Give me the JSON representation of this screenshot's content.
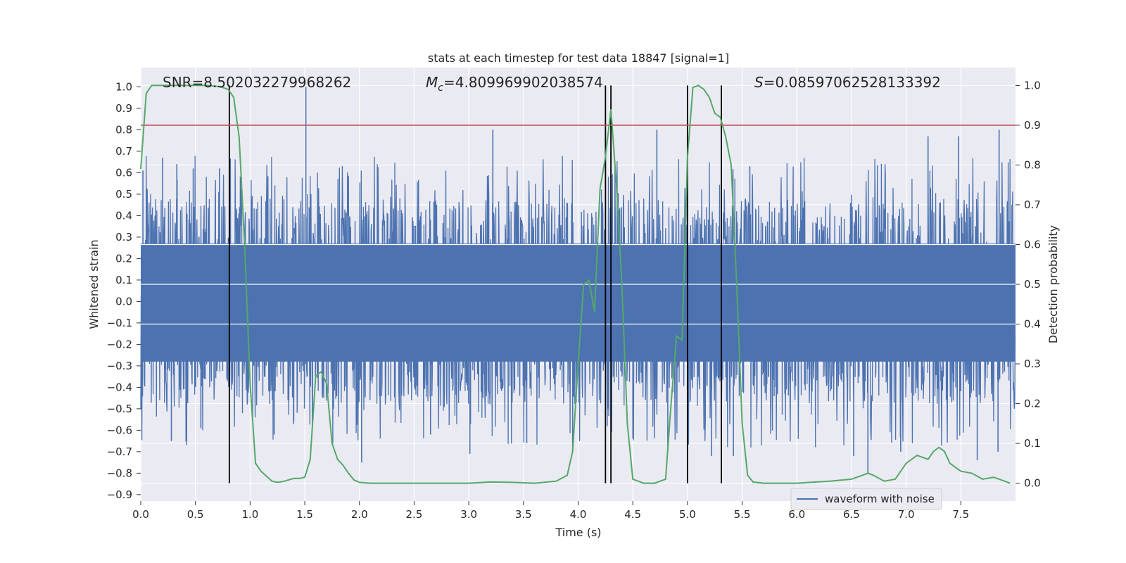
{
  "chart_data": {
    "type": "line",
    "title": "stats at each timestep for test data 18847 [signal=1]",
    "xlabel": "Time (s)",
    "ylabel": "Whitened strain",
    "y2label": "Detection probability",
    "xlim": [
      0.0,
      8.0
    ],
    "ylim": [
      -0.93,
      1.09
    ],
    "y2lim": [
      -0.045,
      1.045
    ],
    "xticks": [
      "0.0",
      "0.5",
      "1.0",
      "1.5",
      "2.0",
      "2.5",
      "3.0",
      "3.5",
      "4.0",
      "4.5",
      "5.0",
      "5.5",
      "6.0",
      "6.5",
      "7.0",
      "7.5"
    ],
    "yticks": [
      "1.0",
      "0.9",
      "0.8",
      "0.7",
      "0.6",
      "0.5",
      "0.4",
      "0.3",
      "0.2",
      "0.1",
      "0.0",
      "−0.1",
      "−0.2",
      "−0.3",
      "−0.4",
      "−0.5",
      "−0.6",
      "−0.7",
      "−0.8",
      "−0.9"
    ],
    "y2ticks": [
      "1.0",
      "0.9",
      "0.8",
      "0.7",
      "0.6",
      "0.5",
      "0.4",
      "0.3",
      "0.2",
      "0.1",
      "0.0"
    ],
    "grid": true,
    "legend": {
      "position": "bottom-right",
      "entries": [
        "waveform with noise"
      ]
    },
    "annotations": {
      "snr": "SNR=8.502032279968262",
      "mc_symbol": "M",
      "mc_subscript": "c",
      "mc_value": "=4.809969902038574",
      "s_symbol": "S",
      "s_value": "=0.08597062528133392"
    },
    "threshold": {
      "y2": 0.9,
      "color": "#c44e52"
    },
    "vlines_x": [
      0.81,
      4.25,
      4.3,
      5.0,
      5.31
    ],
    "colors": {
      "waveform": "#4c72b0",
      "probability": "#55a868",
      "vline": "#000000",
      "background": "#eaeaf2"
    },
    "waveform": {
      "name": "waveform with noise",
      "description_band": [
        -0.28,
        0.27
      ],
      "spikes": [
        {
          "x": 0.02,
          "y": 0.61
        },
        {
          "x": 0.2,
          "y": 0.67
        },
        {
          "x": 0.28,
          "y": -0.65
        },
        {
          "x": 0.33,
          "y": 0.64
        },
        {
          "x": 0.48,
          "y": 0.62
        },
        {
          "x": 0.55,
          "y": -0.59
        },
        {
          "x": 0.72,
          "y": 0.62
        },
        {
          "x": 1.22,
          "y": -0.62
        },
        {
          "x": 1.51,
          "y": 1.0
        },
        {
          "x": 1.57,
          "y": -0.58
        },
        {
          "x": 2.02,
          "y": -0.75
        },
        {
          "x": 2.65,
          "y": -0.62
        },
        {
          "x": 3.01,
          "y": -0.71
        },
        {
          "x": 3.22,
          "y": 0.8
        },
        {
          "x": 3.53,
          "y": -0.66
        },
        {
          "x": 3.95,
          "y": -0.7
        },
        {
          "x": 4.25,
          "y": 0.77
        },
        {
          "x": 4.3,
          "y": 0.92
        },
        {
          "x": 4.72,
          "y": 0.8
        },
        {
          "x": 4.82,
          "y": -0.7
        },
        {
          "x": 5.0,
          "y": 0.92
        },
        {
          "x": 5.22,
          "y": -0.72
        },
        {
          "x": 5.42,
          "y": -0.72
        },
        {
          "x": 5.57,
          "y": 0.63
        },
        {
          "x": 6.52,
          "y": -0.72
        },
        {
          "x": 6.65,
          "y": -0.8
        },
        {
          "x": 6.95,
          "y": -0.7
        },
        {
          "x": 7.2,
          "y": 0.77
        },
        {
          "x": 7.48,
          "y": 0.77
        },
        {
          "x": 7.65,
          "y": -0.74
        },
        {
          "x": 7.85,
          "y": 0.8
        },
        {
          "x": 7.84,
          "y": -0.7
        }
      ]
    },
    "probability": {
      "x": [
        0.0,
        0.05,
        0.1,
        0.2,
        0.3,
        0.4,
        0.5,
        0.6,
        0.7,
        0.75,
        0.8,
        0.85,
        0.9,
        0.95,
        1.0,
        1.05,
        1.1,
        1.2,
        1.25,
        1.3,
        1.4,
        1.45,
        1.5,
        1.55,
        1.6,
        1.65,
        1.7,
        1.75,
        1.8,
        1.85,
        1.9,
        1.95,
        2.0,
        2.1,
        2.3,
        2.5,
        3.0,
        3.2,
        3.4,
        3.6,
        3.8,
        3.9,
        3.95,
        4.0,
        4.05,
        4.1,
        4.15,
        4.2,
        4.25,
        4.3,
        4.35,
        4.4,
        4.45,
        4.5,
        4.6,
        4.7,
        4.8,
        4.85,
        4.9,
        4.95,
        5.0,
        5.05,
        5.1,
        5.15,
        5.2,
        5.25,
        5.3,
        5.35,
        5.4,
        5.45,
        5.5,
        5.55,
        5.6,
        5.7,
        6.0,
        6.3,
        6.5,
        6.6,
        6.65,
        6.7,
        6.8,
        6.9,
        7.0,
        7.1,
        7.2,
        7.25,
        7.3,
        7.35,
        7.4,
        7.5,
        7.6,
        7.7,
        7.8,
        7.9,
        7.95
      ],
      "y": [
        0.79,
        0.98,
        1.0,
        1.0,
        1.0,
        1.0,
        1.0,
        1.0,
        0.998,
        0.995,
        0.99,
        0.97,
        0.87,
        0.6,
        0.25,
        0.05,
        0.03,
        0.005,
        0.002,
        0.004,
        0.012,
        0.012,
        0.015,
        0.06,
        0.27,
        0.28,
        0.25,
        0.1,
        0.06,
        0.045,
        0.025,
        0.008,
        0.002,
        0.0,
        0.0,
        0.0,
        0.0,
        0.003,
        0.002,
        0.0,
        0.005,
        0.02,
        0.08,
        0.3,
        0.5,
        0.51,
        0.43,
        0.74,
        0.82,
        0.94,
        0.75,
        0.5,
        0.15,
        0.01,
        0.0,
        0.0,
        0.01,
        0.2,
        0.37,
        0.36,
        0.82,
        0.995,
        1.0,
        0.99,
        0.97,
        0.93,
        0.92,
        0.87,
        0.8,
        0.5,
        0.15,
        0.02,
        0.003,
        0.0,
        0.0,
        0.005,
        0.01,
        0.02,
        0.025,
        0.02,
        0.005,
        0.01,
        0.05,
        0.07,
        0.06,
        0.08,
        0.09,
        0.08,
        0.05,
        0.03,
        0.025,
        0.01,
        0.015,
        0.005,
        0.0
      ]
    }
  }
}
